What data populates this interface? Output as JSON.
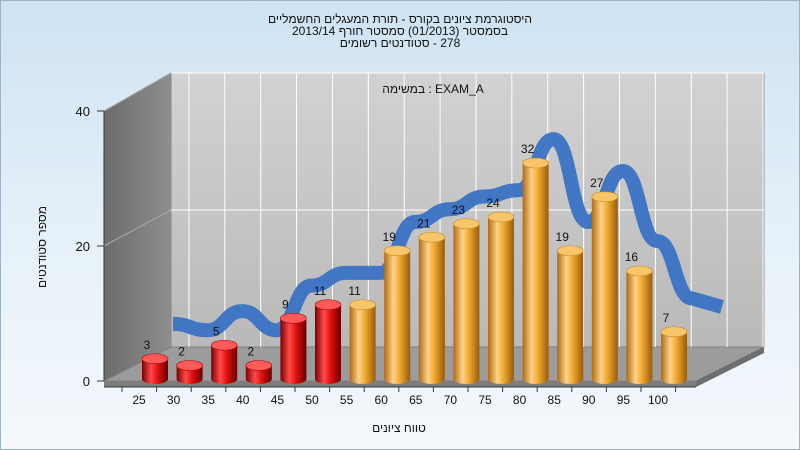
{
  "chart_data": {
    "type": "bar",
    "title_lines": [
      "היסטוגרמת ציונים בקורס - תורת המעגלים החשמליים",
      "בסמסטר  (01/2013)  סמסטר חורף  2013/14",
      "278 - סטודנטים רשומים"
    ],
    "inner_label": "EXAM_A : במשימה",
    "xlabel": "טווח ציונים",
    "ylabel": "מספר סטודנטים",
    "ylim": [
      0,
      40
    ],
    "y_ticks": [
      0,
      20,
      40
    ],
    "categories": [
      "25",
      "30",
      "35",
      "40",
      "45",
      "50",
      "55",
      "60",
      "65",
      "70",
      "75",
      "80",
      "85",
      "90",
      "95",
      "100"
    ],
    "values": [
      3,
      2,
      5,
      2,
      9,
      11,
      11,
      19,
      21,
      23,
      24,
      32,
      19,
      27,
      16,
      7
    ],
    "failing_threshold": 55,
    "bar_colors": {
      "failing": "#e01010",
      "passing": "#f0a830"
    },
    "curve_color": "#3a72c4",
    "grid": true,
    "legend": "none"
  }
}
